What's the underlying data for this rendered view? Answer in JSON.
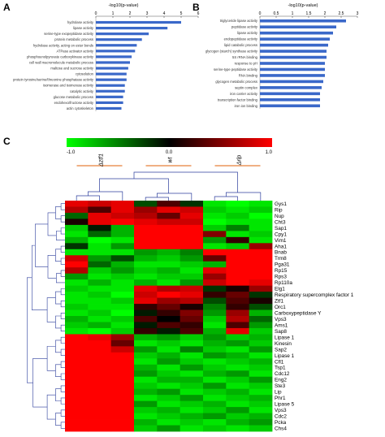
{
  "colors": {
    "bar": "#3a68c9",
    "red": "#ff0000",
    "green": "#00ff00",
    "black": "#000000",
    "dendro": "#2c3e9c",
    "group_line": "#e8803a"
  },
  "chart_data": [
    {
      "panel": "A",
      "type": "bar",
      "orientation": "horizontal",
      "title": "-log10(p-value)",
      "xlim": [
        0,
        6
      ],
      "xticks": [
        "0",
        "1",
        "2",
        "3",
        "4",
        "5",
        "6"
      ],
      "categories": [
        "hydrolase activity",
        "lipase activity",
        "serine-type exopeptidase activity",
        "protein metabolic process",
        "hydrolase activity, acting on ester bonds",
        "ATPase activator activity",
        "phosphoenolpyruvate carboxykinase activity",
        "cell wall macromolecule metabolic process",
        "maltose and sucrose activity",
        "cytosolution",
        "protein tyrosine/serine/threonine phosphatase activity",
        "isomerase and isomerase activity",
        "catalytic activity",
        "glucose metabolic process",
        "endohexo/fructose activity",
        "actin cytoskeleton"
      ],
      "values": [
        5.0,
        4.2,
        3.1,
        2.7,
        2.4,
        2.3,
        2.1,
        2.0,
        1.9,
        1.8,
        1.8,
        1.7,
        1.7,
        1.6,
        1.6,
        1.5
      ]
    },
    {
      "panel": "B",
      "type": "bar",
      "orientation": "horizontal",
      "title": "-log10(p-value)",
      "xlim": [
        0,
        3
      ],
      "xticks": [
        "0",
        "0.5",
        "1",
        "1.5",
        "2",
        "2.5",
        "3"
      ],
      "categories": [
        "triglyceride lipase activity",
        "peptidase activity",
        "lipase activity",
        "endopeptidase activity",
        "lipid catabolic process",
        "glycogen (starch) synthase activity",
        "5S rRNA binding",
        "response to pH",
        "serine-type peptidase activity",
        "RNA binding",
        "glycogen metabolic process",
        "septin complex",
        "iron carrier activity",
        "transcription factor binding",
        "iron ion binding"
      ],
      "values": [
        2.65,
        2.35,
        2.25,
        2.15,
        2.1,
        2.05,
        2.05,
        2.0,
        2.0,
        2.0,
        1.95,
        1.9,
        1.85,
        1.85,
        1.85
      ]
    },
    {
      "panel": "C",
      "type": "heatmap",
      "color_scale": {
        "min": "-1.0",
        "mid": "0.0",
        "max": "1.0",
        "low_color": "#00ff00",
        "mid_color": "#000000",
        "high_color": "#ff0000"
      },
      "groups": [
        "Δztf1",
        "wt",
        "Δrlp"
      ],
      "columns_per_group": 3,
      "rows": [
        "Gys1",
        "Rip",
        "Nup",
        "Cht3",
        "Sap1",
        "Cpy1",
        "Vim1",
        "Aha1",
        "Bnab",
        "Trm8",
        "Pga31",
        "Rp15",
        "Rps3",
        "Rp110a",
        "Elg1",
        "Respiratory supercomplex factor 1",
        "Ztf1",
        "Orc1",
        "Carboxypeptidase Y",
        "Vps3",
        "Ams1",
        "Sap8",
        "Lipase 1",
        "Kinesin",
        "Sap2",
        "Lipase 1",
        "Cfl1",
        "Tsp1",
        "Cdc12",
        "Eng2",
        "Ste3",
        "Lip",
        "Phr1",
        "Lipase 5",
        "Vps3",
        "Cdc2",
        "Pcka",
        "Chs4"
      ],
      "values": [
        [
          0.9,
          0.8,
          0.9,
          -0.3,
          0.3,
          -0.2,
          -0.9,
          -1.0,
          -0.9
        ],
        [
          0.7,
          0.3,
          0.9,
          0.6,
          0.9,
          0.8,
          -0.8,
          -0.9,
          -0.8
        ],
        [
          -0.4,
          0.9,
          0.8,
          0.7,
          0.4,
          0.9,
          -0.9,
          -0.8,
          -1.0
        ],
        [
          0.1,
          0.9,
          1.0,
          0.9,
          0.8,
          0.8,
          -1.0,
          -0.9,
          -0.9
        ],
        [
          -0.8,
          -0.1,
          -0.7,
          1.0,
          1.0,
          1.0,
          -0.8,
          -0.5,
          -0.9
        ],
        [
          -0.9,
          -0.4,
          -0.7,
          1.0,
          1.0,
          1.0,
          0.5,
          -0.9,
          -0.8
        ],
        [
          -0.7,
          -1.0,
          -0.9,
          1.0,
          1.0,
          1.0,
          -0.6,
          0.2,
          -0.9
        ],
        [
          -0.2,
          -0.9,
          -0.6,
          1.0,
          1.0,
          1.0,
          -0.9,
          -0.8,
          0.6
        ],
        [
          -0.9,
          -0.9,
          -0.9,
          -0.6,
          -0.7,
          -0.5,
          1.0,
          1.0,
          1.0
        ],
        [
          0.8,
          -0.6,
          -0.3,
          -0.7,
          -0.8,
          -0.6,
          0.4,
          1.0,
          1.0
        ],
        [
          1.0,
          -0.4,
          -0.7,
          -0.9,
          -0.9,
          -0.8,
          -0.7,
          1.0,
          1.0
        ],
        [
          0.7,
          -0.8,
          -0.6,
          -0.8,
          -0.7,
          -0.9,
          0.9,
          1.0,
          1.0
        ],
        [
          -0.6,
          -0.9,
          -0.8,
          -0.9,
          -0.8,
          -0.8,
          0.6,
          1.0,
          1.0
        ],
        [
          -0.9,
          -0.7,
          -0.9,
          -0.7,
          -0.9,
          -0.6,
          0.8,
          1.0,
          0.9
        ],
        [
          -0.8,
          -0.9,
          -0.9,
          0.9,
          0.7,
          0.8,
          -0.2,
          0.1,
          0.6
        ],
        [
          -0.9,
          -0.8,
          -1.0,
          0.8,
          1.0,
          0.9,
          0.2,
          0.4,
          -0.2
        ],
        [
          -0.9,
          -0.9,
          -0.8,
          0.9,
          0.6,
          0.7,
          -0.3,
          0.3,
          0.1
        ],
        [
          -0.8,
          -0.9,
          -0.9,
          0.2,
          0.4,
          0.1,
          -0.5,
          0.2,
          -0.3
        ],
        [
          -0.9,
          -0.8,
          -1.0,
          -0.1,
          0.2,
          0.5,
          -0.6,
          0.6,
          -0.7
        ],
        [
          -0.7,
          -0.9,
          -0.8,
          0.3,
          0.0,
          0.4,
          -0.8,
          0.7,
          -0.4
        ],
        [
          -0.8,
          -0.7,
          -0.9,
          -0.1,
          0.3,
          0.2,
          -0.9,
          0.3,
          -0.6
        ],
        [
          -0.9,
          -1.0,
          -0.8,
          0.2,
          -0.1,
          0.3,
          -0.7,
          0.9,
          -0.8
        ],
        [
          1.0,
          0.9,
          0.6,
          -0.7,
          -0.6,
          -0.8,
          -0.6,
          -0.8,
          -0.7
        ],
        [
          1.0,
          1.0,
          0.4,
          -0.9,
          -0.8,
          -0.9,
          -0.7,
          -0.6,
          -0.8
        ],
        [
          1.0,
          1.0,
          0.8,
          -0.6,
          -0.9,
          -0.5,
          -0.8,
          -0.9,
          -0.6
        ],
        [
          1.0,
          1.0,
          1.0,
          -0.8,
          -0.7,
          -0.9,
          -0.6,
          -0.7,
          -0.9
        ],
        [
          1.0,
          1.0,
          1.0,
          -0.9,
          -0.6,
          -0.8,
          -0.9,
          -0.8,
          -0.7
        ],
        [
          1.0,
          1.0,
          1.0,
          -0.7,
          -0.9,
          -0.6,
          -0.8,
          -0.9,
          -0.8
        ],
        [
          1.0,
          1.0,
          1.0,
          -0.6,
          -0.8,
          -0.9,
          -0.7,
          -0.6,
          -0.9
        ],
        [
          1.0,
          1.0,
          1.0,
          -0.9,
          -0.7,
          -0.7,
          -0.9,
          -0.8,
          -0.6
        ],
        [
          1.0,
          1.0,
          1.0,
          -0.8,
          -0.9,
          -0.8,
          -0.6,
          -0.9,
          -0.8
        ],
        [
          1.0,
          1.0,
          1.0,
          -0.7,
          -0.6,
          -0.9,
          -0.8,
          -0.7,
          -0.9
        ],
        [
          1.0,
          1.0,
          1.0,
          -0.9,
          -0.8,
          -0.6,
          -0.9,
          -0.8,
          -0.7
        ],
        [
          1.0,
          1.0,
          1.0,
          -0.6,
          -0.9,
          -0.8,
          -0.7,
          -0.9,
          -0.8
        ],
        [
          1.0,
          1.0,
          1.0,
          -0.8,
          -0.7,
          -0.9,
          -0.8,
          -0.6,
          -0.9
        ],
        [
          1.0,
          1.0,
          1.0,
          -0.9,
          -0.8,
          -0.7,
          -0.6,
          -0.8,
          -0.7
        ],
        [
          1.0,
          1.0,
          1.0,
          -0.7,
          -0.9,
          -0.8,
          -0.9,
          -0.7,
          -0.6
        ],
        [
          1.0,
          1.0,
          1.0,
          -0.8,
          -0.6,
          -0.9,
          -0.8,
          -0.9,
          -0.8
        ]
      ]
    }
  ]
}
